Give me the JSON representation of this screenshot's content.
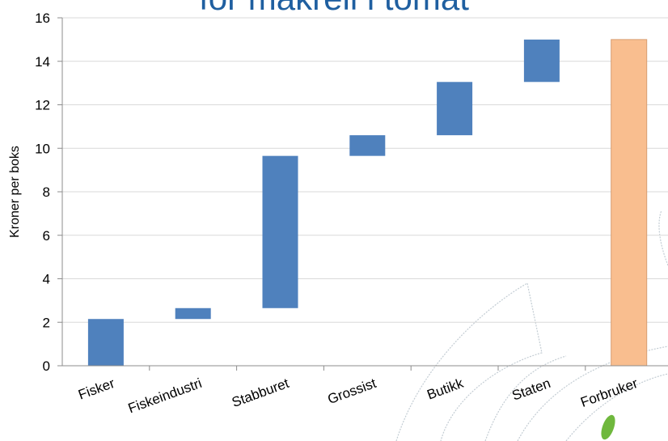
{
  "chart_data": {
    "type": "bar",
    "subtype": "waterfall",
    "title": "for makrell i tomat",
    "ylabel": "Kroner per boks",
    "xlabel": "",
    "ylim": [
      0,
      16
    ],
    "yticks": [
      0,
      2,
      4,
      6,
      8,
      10,
      12,
      14,
      16
    ],
    "grid": true,
    "categories": [
      "Fisker",
      "Fiskeindustri",
      "Stabburet",
      "Grossist",
      "Butikk",
      "Staten",
      "Forbruker"
    ],
    "bars": [
      {
        "category": "Fisker",
        "start": 0,
        "end": 2.15
      },
      {
        "category": "Fiskeindustri",
        "start": 2.15,
        "end": 2.65
      },
      {
        "category": "Stabburet",
        "start": 2.65,
        "end": 9.65
      },
      {
        "category": "Grossist",
        "start": 9.65,
        "end": 10.6
      },
      {
        "category": "Butikk",
        "start": 10.6,
        "end": 13.05
      },
      {
        "category": "Staten",
        "start": 13.05,
        "end": 15.0
      },
      {
        "category": "Forbruker",
        "start": 0,
        "end": 15.0
      }
    ],
    "colors": {
      "increment": "#4f81bd",
      "total": "#f9be8f",
      "total_border": "#d79d72",
      "grid": "#d9d9d9",
      "axis": "#8c8c8c",
      "title": "#1f5fa0"
    }
  }
}
